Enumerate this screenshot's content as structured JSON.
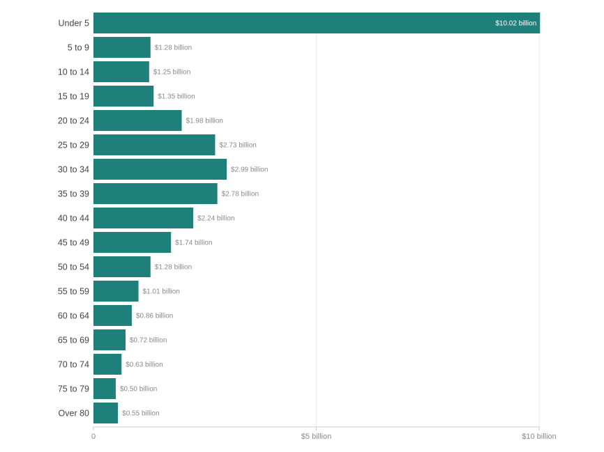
{
  "chart_data": {
    "type": "bar",
    "orientation": "horizontal",
    "categories": [
      "Under 5",
      "5 to 9",
      "10 to 14",
      "15 to 19",
      "20 to 24",
      "25 to 29",
      "30 to 34",
      "35 to 39",
      "40 to 44",
      "45 to 49",
      "50 to 54",
      "55 to 59",
      "60 to 64",
      "65 to 69",
      "70 to 74",
      "75 to 79",
      "Over 80"
    ],
    "values": [
      10.02,
      1.28,
      1.25,
      1.35,
      1.98,
      2.73,
      2.99,
      2.78,
      2.24,
      1.74,
      1.28,
      1.01,
      0.86,
      0.72,
      0.63,
      0.5,
      0.55
    ],
    "value_labels": [
      "$10.02 billion",
      "$1.28 billion",
      "$1.25 billion",
      "$1.35 billion",
      "$1.98 billion",
      "$2.73 billion",
      "$2.99 billion",
      "$2.78 billion",
      "$2.24 billion",
      "$1.74 billion",
      "$1.28 billion",
      "$1.01 billion",
      "$0.86 billion",
      "$0.72 billion",
      "$0.63 billion",
      "$0.50 billion",
      "$0.55 billion"
    ],
    "xticks": [
      0,
      5,
      10
    ],
    "xtick_labels": [
      "0",
      "$5 billion",
      "$10 billion"
    ],
    "xlim": [
      0,
      10
    ],
    "title": "",
    "xlabel": "",
    "ylabel": "",
    "grid": true,
    "bar_color": "#1f807b"
  }
}
